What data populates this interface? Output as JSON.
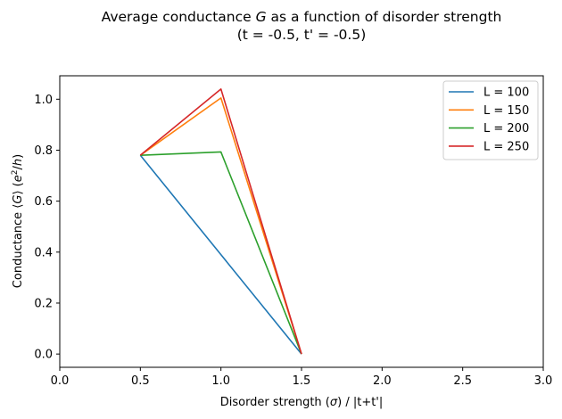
{
  "chart_data": {
    "type": "line",
    "title_line1_pre": "Average conductance ",
    "title_symbol": "G",
    "title_line1_post": " as a function of disorder strength",
    "title_line2": "(t = -0.5, t' = -0.5)",
    "xlabel_pre": "Disorder strength (",
    "xlabel_sym": "σ",
    "xlabel_post": ") / |t+t'|",
    "ylabel_pre": "Conductance ⟨",
    "ylabel_sym": "G",
    "ylabel_mid": "⟩ (",
    "ylabel_e": "e",
    "ylabel_sup": "2",
    "ylabel_slash": "/",
    "ylabel_h": "h",
    "ylabel_close": ")",
    "xlim": [
      0.0,
      3.0
    ],
    "ylim": [
      -0.052,
      1.092
    ],
    "xticks": [
      0.0,
      0.5,
      1.0,
      1.5,
      2.0,
      2.5,
      3.0
    ],
    "xtick_labels": [
      "0.0",
      "0.5",
      "1.0",
      "1.5",
      "2.0",
      "2.5",
      "3.0"
    ],
    "yticks": [
      0.0,
      0.2,
      0.4,
      0.6,
      0.8,
      1.0
    ],
    "ytick_labels": [
      "0.0",
      "0.2",
      "0.4",
      "0.6",
      "0.8",
      "1.0"
    ],
    "grid": false,
    "legend_position": "top-right",
    "x": [
      0.5,
      1.0,
      1.5
    ],
    "series": [
      {
        "name": "L = 100",
        "color": "#1f77b4",
        "values": [
          0.78,
          0.39,
          0.0
        ]
      },
      {
        "name": "L = 150",
        "color": "#ff7f0e",
        "values": [
          0.78,
          1.005,
          0.0
        ]
      },
      {
        "name": "L = 200",
        "color": "#2ca02c",
        "values": [
          0.78,
          0.793,
          0.0
        ]
      },
      {
        "name": "L = 250",
        "color": "#d62728",
        "values": [
          0.78,
          1.04,
          0.0
        ]
      }
    ]
  }
}
